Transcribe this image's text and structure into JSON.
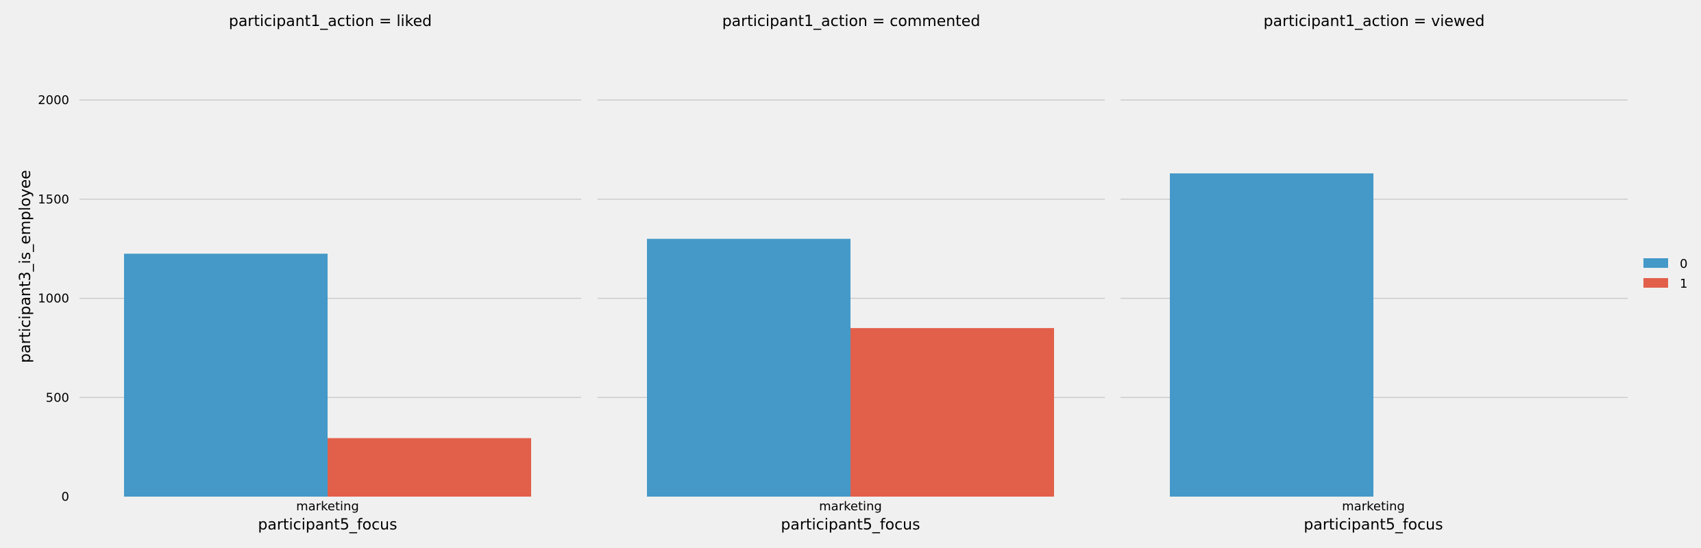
{
  "chart_data": {
    "type": "bar",
    "ylabel": "participant3_is_employee",
    "ylim": [
      0,
      2200
    ],
    "yticks": [
      0,
      500,
      1000,
      1500,
      2000
    ],
    "grid": true,
    "legend": {
      "placement": "right",
      "entries": [
        {
          "label": "0",
          "color": "#4499c8"
        },
        {
          "label": "1",
          "color": "#e2604a"
        }
      ]
    },
    "facets": [
      {
        "title": "participant1_action = liked",
        "xlabel": "participant5_focus",
        "categories": [
          "marketing"
        ],
        "series": [
          {
            "name": "0",
            "values": [
              1225
            ]
          },
          {
            "name": "1",
            "values": [
              295
            ]
          }
        ]
      },
      {
        "title": "participant1_action = commented",
        "xlabel": "participant5_focus",
        "categories": [
          "marketing"
        ],
        "series": [
          {
            "name": "0",
            "values": [
              1300
            ]
          },
          {
            "name": "1",
            "values": [
              850
            ]
          }
        ]
      },
      {
        "title": "participant1_action = viewed",
        "xlabel": "participant5_focus",
        "categories": [
          "marketing"
        ],
        "series": [
          {
            "name": "0",
            "values": [
              1630
            ]
          }
        ]
      }
    ]
  }
}
